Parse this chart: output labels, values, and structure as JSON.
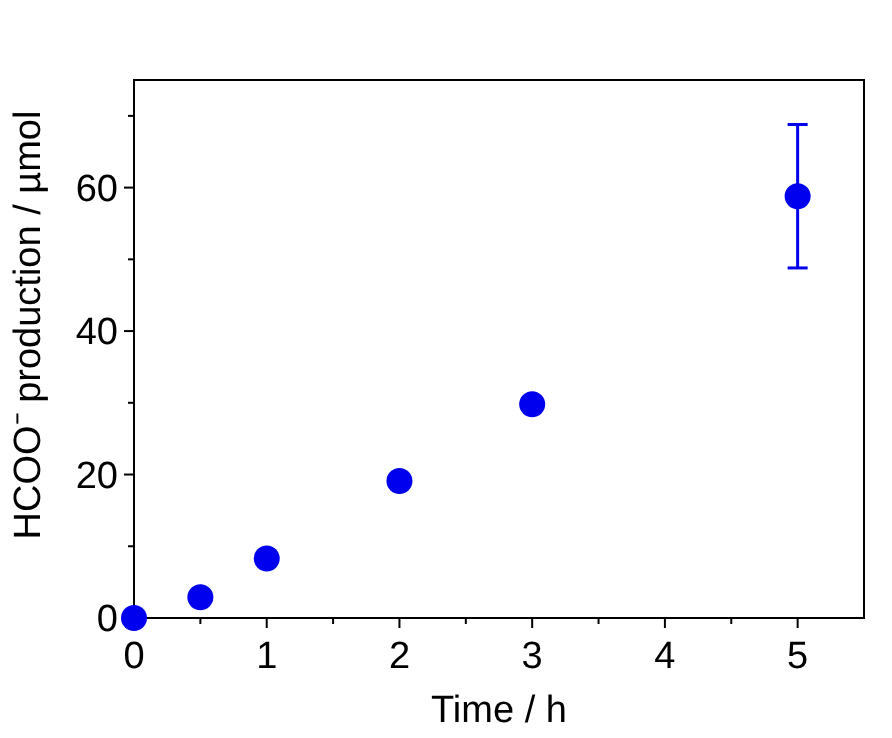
{
  "chart_data": {
    "type": "scatter",
    "xlabel": "Time / h",
    "ylabel": "HCOO⁻ production / µmol",
    "xlim": [
      0,
      5.5
    ],
    "ylim": [
      0,
      75
    ],
    "xticks": [
      0,
      {
        "value": 0.5,
        "label": null
      },
      1,
      {
        "value": 1.5,
        "label": null
      },
      2,
      {
        "value": 2.5,
        "label": null
      },
      3,
      {
        "value": 3.5,
        "label": null
      },
      4,
      {
        "value": 4.5,
        "label": null
      },
      5
    ],
    "yticks": [
      0,
      {
        "value": 10,
        "label": null
      },
      20,
      {
        "value": 30,
        "label": null
      },
      40,
      {
        "value": 50,
        "label": null
      },
      60,
      {
        "value": 70,
        "label": null
      }
    ],
    "marker": "circle",
    "grid": false,
    "series": [
      {
        "color": "#0000ee",
        "x": [
          0,
          0.5,
          1,
          2,
          3,
          5
        ],
        "values": [
          0,
          2.9,
          8.3,
          19.1,
          29.8,
          58.8
        ],
        "errors": [
          null,
          null,
          null,
          null,
          null,
          10
        ]
      }
    ]
  }
}
